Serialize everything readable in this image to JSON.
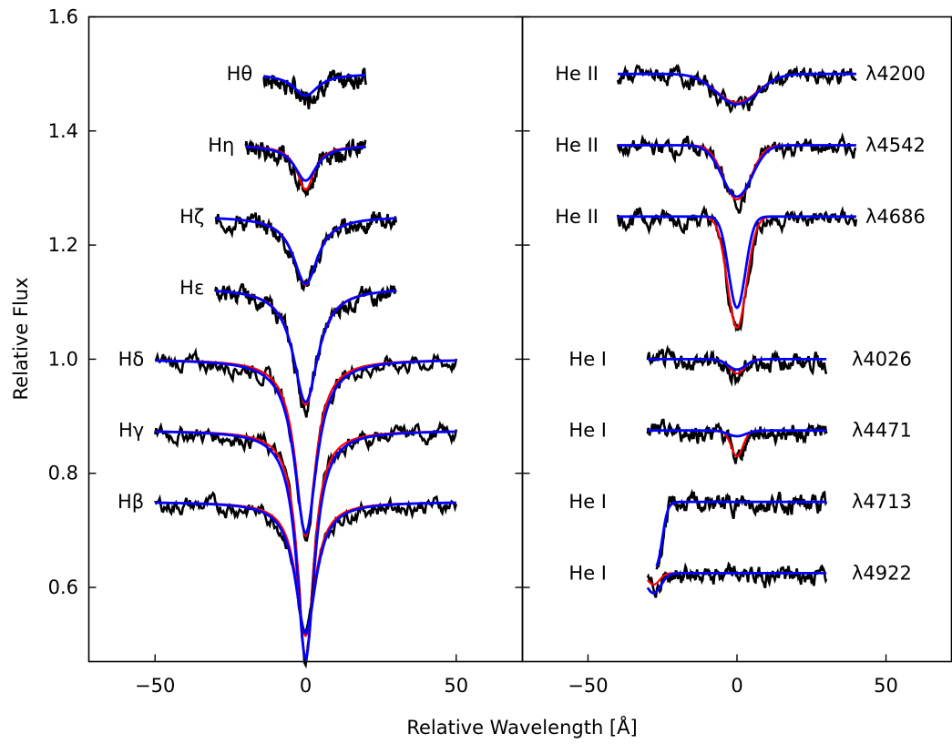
{
  "chart_data": {
    "type": "line",
    "ylabel": "Relative Flux",
    "xlabel": "Relative Wavelength [Å]",
    "ylim": [
      0.47,
      1.6
    ],
    "y_ticks": [
      0.6,
      0.8,
      1.0,
      1.2,
      1.4,
      1.6
    ],
    "y_tick_labels": [
      "0.6",
      "0.8",
      "1.0",
      "1.2",
      "1.4",
      "1.6"
    ],
    "legend": "none",
    "grid": false,
    "colors": {
      "observed": "#000000",
      "model_red": "#ff0000",
      "model_blue": "#0000ff"
    },
    "panels": [
      {
        "xlim": [
          -72,
          72
        ],
        "x_ticks": [
          -50,
          0,
          50
        ],
        "x_tick_labels": [
          "−50",
          "0",
          "50"
        ],
        "lines": [
          {
            "label": "Hθ",
            "continuum": 1.5,
            "depth_red": 0.038,
            "depth_blue": 0.038,
            "width_red": 5.0,
            "width_blue": 5.0,
            "xmin": -14,
            "xmax": 20
          },
          {
            "label": "Hη",
            "continuum": 1.375,
            "depth_red": 0.078,
            "depth_blue": 0.062,
            "width_red": 3.5,
            "width_blue": 4.5,
            "xmin": -20,
            "xmax": 20
          },
          {
            "label": "Hζ",
            "continuum": 1.25,
            "depth_red": 0.12,
            "depth_blue": 0.118,
            "width_red": 4.8,
            "width_blue": 5.0,
            "xmin": -30,
            "xmax": 30
          },
          {
            "label": "Hε",
            "continuum": 1.125,
            "depth_red": 0.205,
            "depth_blue": 0.2,
            "width_red": 4.8,
            "width_blue": 5.0,
            "xmin": -30,
            "xmax": 30
          },
          {
            "label": "Hδ",
            "continuum": 1.0,
            "depth_red": 0.31,
            "depth_blue": 0.305,
            "width_red": 4.0,
            "width_blue": 4.5,
            "xmin": -50,
            "xmax": 50
          },
          {
            "label": "Hγ",
            "continuum": 0.875,
            "depth_red": 0.4,
            "depth_blue": 0.4,
            "width_red": 3.2,
            "width_blue": 3.6,
            "xmin": -50,
            "xmax": 50
          },
          {
            "label": "Hβ",
            "continuum": 0.75,
            "depth_red": 0.235,
            "depth_blue": 0.23,
            "width_red": 3.8,
            "width_blue": 4.2,
            "xmin": -50,
            "xmax": 50
          }
        ]
      },
      {
        "xlim": [
          -72,
          72
        ],
        "x_ticks": [
          -50,
          0,
          50
        ],
        "x_tick_labels": [
          "−50",
          "0",
          "50"
        ],
        "lines": [
          {
            "label": "He II",
            "wavelength_label": "λ4200",
            "continuum": 1.5,
            "depth_red": 0.05,
            "depth_blue": 0.053,
            "width_red": 7.0,
            "width_blue": 7.0,
            "center": 0,
            "xmin": -40,
            "xmax": 40
          },
          {
            "label": "He II",
            "wavelength_label": "λ4542",
            "continuum": 1.375,
            "depth_red": 0.095,
            "depth_blue": 0.09,
            "width_red": 4.5,
            "width_blue": 5.0,
            "center": 0,
            "xmin": -40,
            "xmax": 40
          },
          {
            "label": "He II",
            "wavelength_label": "λ4686",
            "continuum": 1.25,
            "depth_red": 0.195,
            "depth_blue": 0.16,
            "width_red": 3.2,
            "width_blue": 2.8,
            "center": 0,
            "xmin": -40,
            "xmax": 40
          },
          {
            "label": "He I",
            "wavelength_label": "λ4026",
            "continuum": 1.0,
            "depth_red": 0.025,
            "depth_blue": 0.018,
            "width_red": 2.5,
            "width_blue": 3.0,
            "center": 0,
            "xmin": -30,
            "xmax": 30
          },
          {
            "label": "He I",
            "wavelength_label": "λ4471",
            "continuum": 0.875,
            "depth_red": 0.045,
            "depth_blue": 0.01,
            "width_red": 2.0,
            "width_blue": 3.0,
            "center": 0,
            "xmin": -30,
            "xmax": 30
          },
          {
            "label": "He I",
            "wavelength_label": "λ4713",
            "continuum": 0.75,
            "depth_red": 0.0,
            "depth_blue": 0.0,
            "width_red": 2.0,
            "width_blue": 2.0,
            "center": 0,
            "xmin": -27,
            "xmax": 30
          },
          {
            "label": "He I",
            "wavelength_label": "λ4922",
            "continuum": 0.625,
            "depth_red": 0.02,
            "depth_blue": 0.035,
            "width_red": 2.0,
            "width_blue": 2.5,
            "center": -28,
            "xmin": -30,
            "xmax": 30
          }
        ]
      }
    ]
  }
}
